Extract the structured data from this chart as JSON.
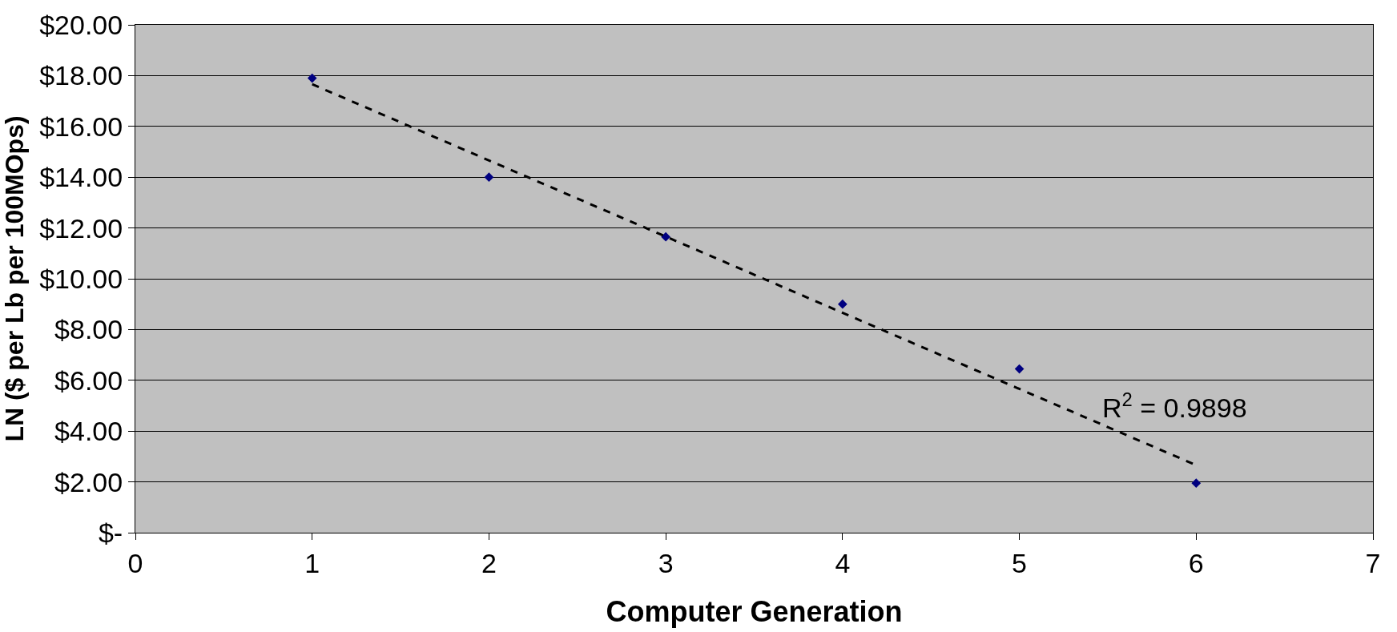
{
  "chart_data": {
    "type": "scatter",
    "xlabel": "Computer Generation",
    "ylabel": "LN ($ per Lb per 100MOps)",
    "x": [
      1,
      2,
      3,
      4,
      5,
      6
    ],
    "series": [
      {
        "color": "#000080",
        "values": [
          17.9,
          14.0,
          11.65,
          9.0,
          6.45,
          1.95
        ],
        "marker": "diamond"
      },
      {
        "type": "line",
        "color": "#000000",
        "x": [
          1,
          6
        ],
        "values": [
          17.66,
          2.66
        ],
        "line_style": "dashed",
        "marker": "none"
      }
    ],
    "xlim": [
      0,
      7
    ],
    "xticks": [
      0,
      1,
      2,
      3,
      4,
      5,
      6,
      7
    ],
    "ylim": [
      0,
      20
    ],
    "yticks": [
      {
        "value": 0,
        "label": "$-"
      },
      {
        "value": 2,
        "label": "$2.00"
      },
      {
        "value": 4,
        "label": "$4.00"
      },
      {
        "value": 6,
        "label": "$6.00"
      },
      {
        "value": 8,
        "label": "$8.00"
      },
      {
        "value": 10,
        "label": "$10.00"
      },
      {
        "value": 12,
        "label": "$12.00"
      },
      {
        "value": 14,
        "label": "$14.00"
      },
      {
        "value": 16,
        "label": "$16.00"
      },
      {
        "value": 18,
        "label": "$18.00"
      },
      {
        "value": 20,
        "label": "$20.00"
      }
    ],
    "grid": "y",
    "annotations": [
      "R$^{2}$ = 0.9898"
    ]
  }
}
